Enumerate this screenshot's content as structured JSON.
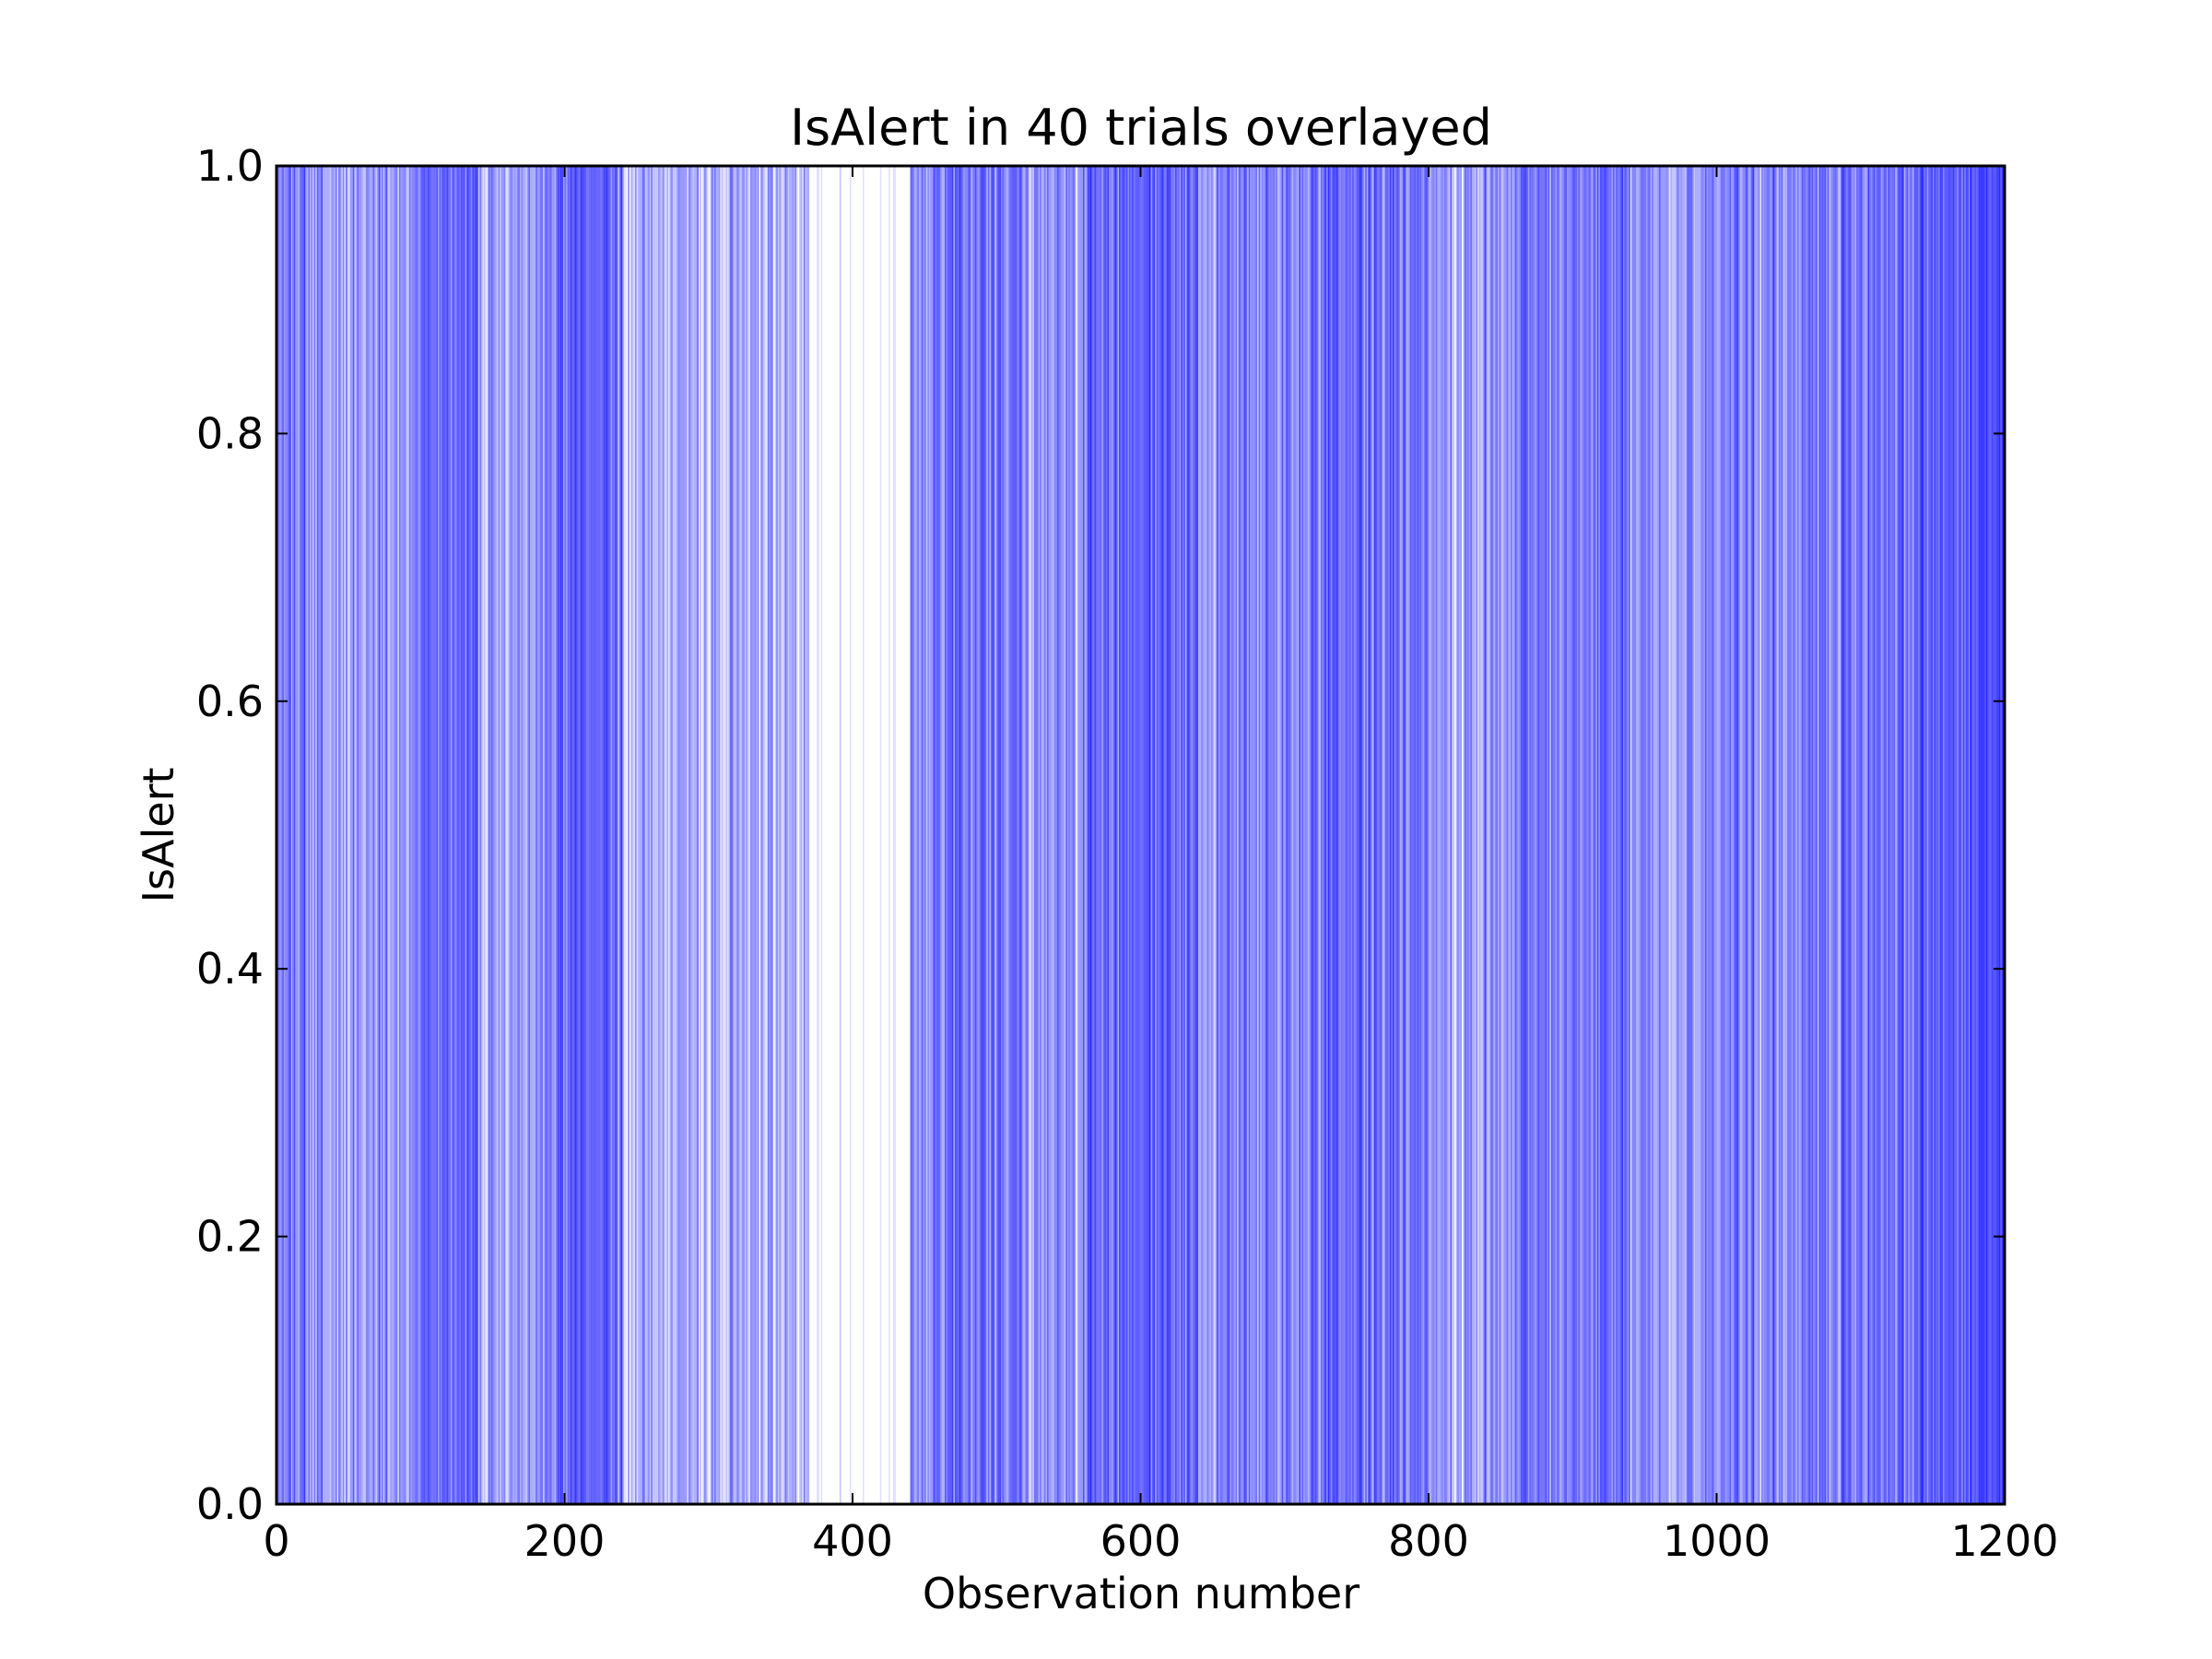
{
  "chart_data": {
    "type": "bar",
    "title": "IsAlert in 40 trials overlayed",
    "xlabel": "Observation number",
    "ylabel": "IsAlert",
    "xlim": [
      0,
      1200
    ],
    "ylim": [
      0.0,
      1.0
    ],
    "xticks": [
      "0",
      "200",
      "400",
      "600",
      "800",
      "1000",
      "1200"
    ],
    "yticks": [
      "0.0",
      "0.2",
      "0.4",
      "0.6",
      "0.8",
      "1.0"
    ],
    "grid": false,
    "legend": "none",
    "series_count": 40,
    "line_color": "#0000ff",
    "line_opacity_per_trial": 0.12,
    "value_when_alert": 1.0,
    "alert_density_by_range": [
      {
        "x": [
          0,
          20
        ],
        "fraction_alert": 0.55
      },
      {
        "x": [
          20,
          60
        ],
        "fraction_alert": 0.35
      },
      {
        "x": [
          60,
          100
        ],
        "fraction_alert": 0.45
      },
      {
        "x": [
          100,
          140
        ],
        "fraction_alert": 0.7
      },
      {
        "x": [
          140,
          180
        ],
        "fraction_alert": 0.35
      },
      {
        "x": [
          180,
          240
        ],
        "fraction_alert": 0.75
      },
      {
        "x": [
          240,
          280
        ],
        "fraction_alert": 0.3
      },
      {
        "x": [
          280,
          330
        ],
        "fraction_alert": 0.25
      },
      {
        "x": [
          330,
          370
        ],
        "fraction_alert": 0.3
      },
      {
        "x": [
          370,
          440
        ],
        "fraction_alert": 0.03
      },
      {
        "x": [
          440,
          520
        ],
        "fraction_alert": 0.65
      },
      {
        "x": [
          520,
          560
        ],
        "fraction_alert": 0.45
      },
      {
        "x": [
          560,
          640
        ],
        "fraction_alert": 0.75
      },
      {
        "x": [
          640,
          700
        ],
        "fraction_alert": 0.5
      },
      {
        "x": [
          700,
          800
        ],
        "fraction_alert": 0.7
      },
      {
        "x": [
          800,
          860
        ],
        "fraction_alert": 0.35
      },
      {
        "x": [
          860,
          940
        ],
        "fraction_alert": 0.6
      },
      {
        "x": [
          940,
          1000
        ],
        "fraction_alert": 0.45
      },
      {
        "x": [
          1000,
          1060
        ],
        "fraction_alert": 0.55
      },
      {
        "x": [
          1060,
          1140
        ],
        "fraction_alert": 0.6
      },
      {
        "x": [
          1140,
          1200
        ],
        "fraction_alert": 0.85
      }
    ]
  }
}
